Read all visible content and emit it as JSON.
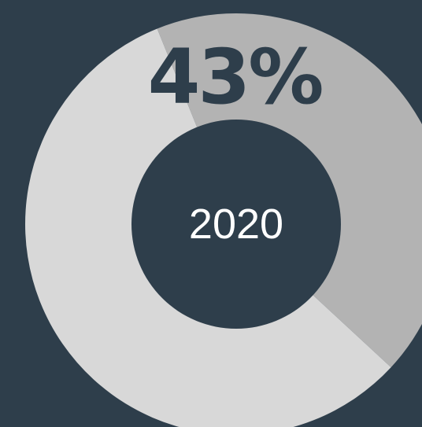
{
  "chart_data": {
    "type": "pie",
    "categories": [
      "",
      ""
    ],
    "values": [
      43,
      57
    ],
    "colors": [
      "#b3b3b3",
      "#d8d8d8"
    ],
    "percent_label": "43%",
    "center_label": "2020",
    "title": "",
    "xlabel": "",
    "ylabel": "",
    "legend": "none"
  },
  "theme": {
    "background": "#2e3e4b",
    "hole_color": "#2e3e4b",
    "label_color": "#2e3e4b",
    "center_text_color": "#ffffff"
  }
}
